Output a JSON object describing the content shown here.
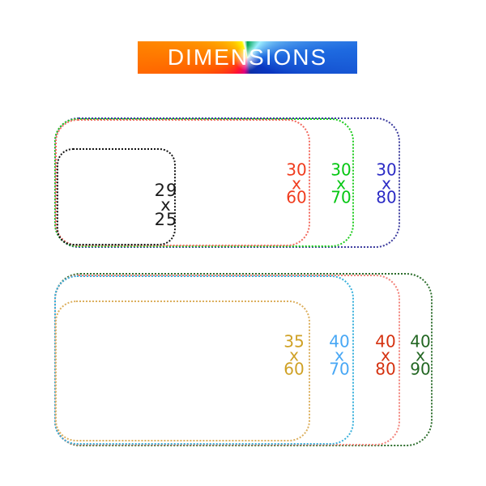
{
  "banner": {
    "title": "DIMENSIONS",
    "text_color": "#ffffff"
  },
  "top_group": {
    "rects": [
      {
        "id": "29x25",
        "lines": [
          "29",
          "x",
          "25"
        ],
        "border_color": "#151515",
        "text_color": "#1b1b1b"
      },
      {
        "id": "30x60",
        "lines": [
          "30",
          "x",
          "60"
        ],
        "border_color": "#f26a5e",
        "text_color": "#f03c1e"
      },
      {
        "id": "30x70",
        "lines": [
          "30",
          "x",
          "70"
        ],
        "border_color": "#1ecb1e",
        "text_color": "#05c713"
      },
      {
        "id": "30x80",
        "lines": [
          "30",
          "x",
          "80"
        ],
        "border_color": "#3c3c9e",
        "text_color": "#2b2bc5"
      }
    ]
  },
  "bottom_group": {
    "rects": [
      {
        "id": "35x60",
        "lines": [
          "35",
          "x",
          "60"
        ],
        "border_color": "#dcaf5e",
        "text_color": "#cfa125"
      },
      {
        "id": "40x70",
        "lines": [
          "40",
          "x",
          "70"
        ],
        "border_color": "#38b0dc",
        "text_color": "#47a7f5"
      },
      {
        "id": "40x80",
        "lines": [
          "40",
          "x",
          "80"
        ],
        "border_color": "#f2837b",
        "text_color": "#d5310f"
      },
      {
        "id": "40x90",
        "lines": [
          "40",
          "x",
          "90"
        ],
        "border_color": "#2d6e2d",
        "text_color": "#226622"
      }
    ]
  }
}
